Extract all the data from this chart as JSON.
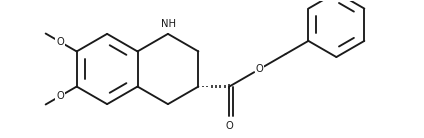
{
  "bg_color": "#ffffff",
  "line_color": "#1a1a1a",
  "line_width": 1.35,
  "font_size": 7.2,
  "fig_width": 4.24,
  "fig_height": 1.38,
  "dpi": 100,
  "xlim": [
    0.0,
    8.5
  ],
  "ylim": [
    0.15,
    2.95
  ]
}
